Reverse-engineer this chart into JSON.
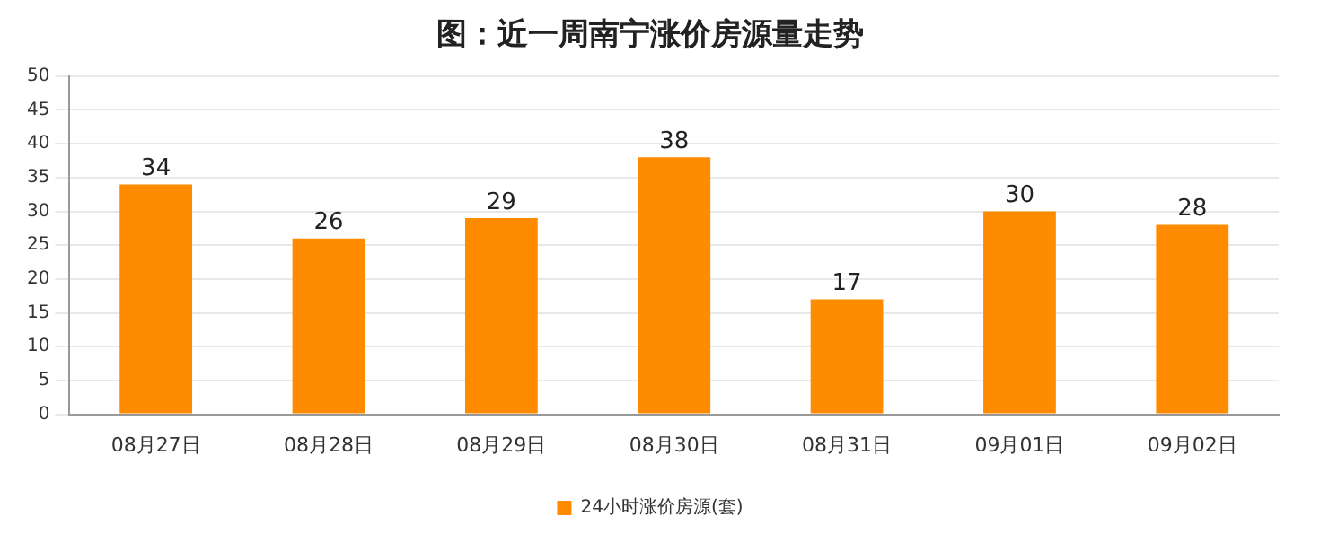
{
  "chart_data": {
    "type": "bar",
    "title": "图：近一周南宁涨价房源量走势",
    "categories": [
      "08月27日",
      "08月28日",
      "08月29日",
      "08月30日",
      "08月31日",
      "09月01日",
      "09月02日"
    ],
    "series": [
      {
        "name": "24小时涨价房源(套)",
        "color": "#ff8c00",
        "values": [
          34,
          26,
          29,
          38,
          17,
          30,
          28
        ]
      }
    ],
    "ylim": [
      0,
      50
    ],
    "yticks": [
      0,
      5,
      10,
      15,
      20,
      25,
      30,
      35,
      40,
      45,
      50
    ],
    "grid": "y",
    "legend": "bottom",
    "data_labels": true
  }
}
